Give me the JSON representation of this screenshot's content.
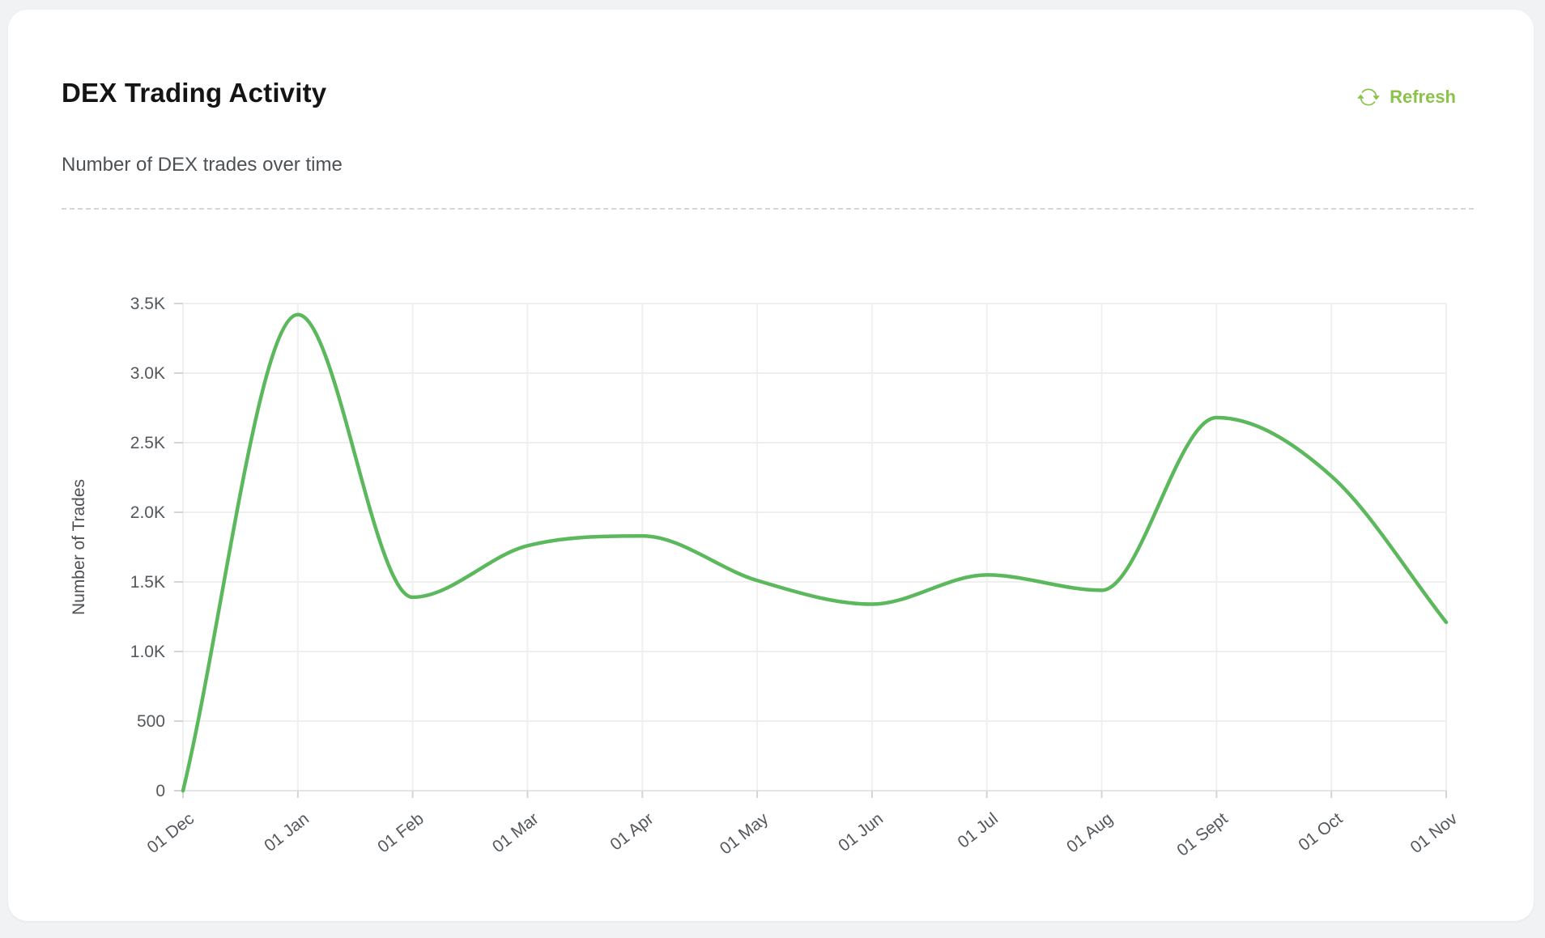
{
  "page": {
    "background_color": "#f1f2f4",
    "card_color": "#ffffff"
  },
  "header": {
    "title": "DEX Trading Activity",
    "subtitle": "Number of DEX trades over time",
    "refresh_label": "Refresh",
    "accent_color": "#8bc34a"
  },
  "chart_data": {
    "type": "line",
    "title": "DEX Trading Activity",
    "categories": [
      "01 Dec",
      "01 Jan",
      "01 Feb",
      "01 Mar",
      "01 Apr",
      "01 May",
      "01 Jun",
      "01 Jul",
      "01 Aug",
      "01 Sept",
      "01 Oct",
      "01 Nov"
    ],
    "values": [
      0,
      3420,
      1390,
      1760,
      1830,
      1510,
      1340,
      1550,
      1440,
      2680,
      2260,
      1210
    ],
    "xlabel": "",
    "ylabel": "Number of Trades",
    "ylim": [
      0,
      3500
    ],
    "ytick_interval": 500,
    "ytick_labels": [
      "0",
      "500",
      "1.0K",
      "1.5K",
      "2.0K",
      "2.5K",
      "3.0K",
      "3.5K"
    ],
    "line_color": "#5cb85c",
    "grid": true,
    "smooth": true,
    "legend_position": "none",
    "axis_label_color": "#54585c",
    "x_label_rotation_deg": -38
  }
}
